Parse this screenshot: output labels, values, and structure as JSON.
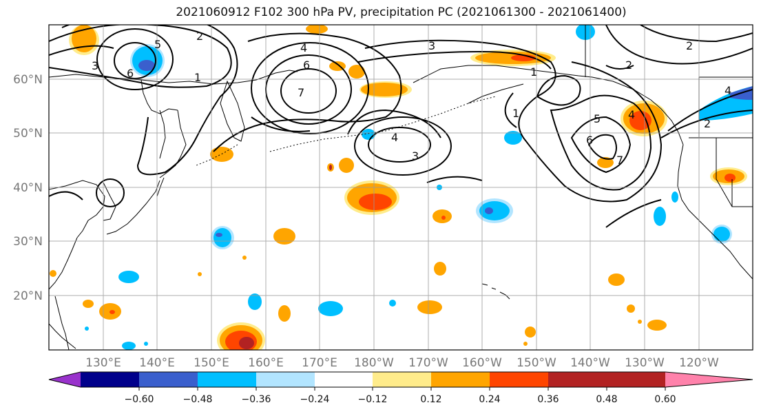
{
  "title": "2021060912 F102 300 hPa PV, precipitation PC (2021061300 - 2021061400)",
  "map": {
    "region": "North Pacific",
    "lat_range": [
      10,
      70
    ],
    "lon_range_deg_east": [
      120,
      250
    ],
    "lat_labels": [
      "60°N",
      "50°N",
      "40°N",
      "30°N",
      "20°N"
    ],
    "lon_labels": [
      "130°E",
      "140°E",
      "150°E",
      "160°E",
      "170°E",
      "180°W",
      "170°W",
      "160°W",
      "150°W",
      "140°W",
      "130°W",
      "120°W"
    ],
    "grid": true
  },
  "pv_contours": {
    "color": "#000000",
    "labels": [
      "2",
      "3",
      "4",
      "5",
      "6",
      "7",
      "1",
      "2",
      "6",
      "3",
      "2",
      "4",
      "3",
      "5",
      "4",
      "6",
      "1",
      "7",
      "4",
      "2",
      "1"
    ]
  },
  "colorbar": {
    "ticks": [
      "−0.60",
      "−0.48",
      "−0.36",
      "−0.24",
      "−0.12",
      "0.12",
      "0.24",
      "0.36",
      "0.48",
      "0.60"
    ],
    "colors": [
      "#9932cc",
      "#00008b",
      "#3a5fcd",
      "#00bfff",
      "#b2e5ff",
      "#ffffff",
      "#ffec8b",
      "#ffa500",
      "#ff4500",
      "#b22222",
      "#ff82ab"
    ]
  }
}
